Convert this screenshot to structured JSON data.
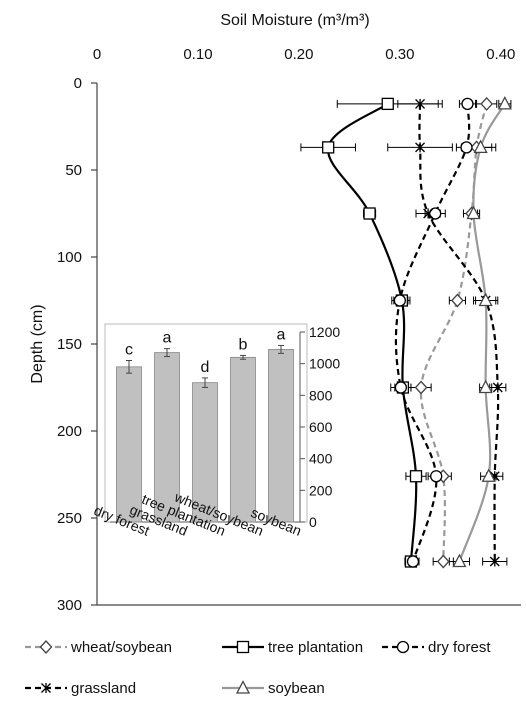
{
  "chart_data": [
    {
      "type": "line",
      "title": "",
      "xlabel": "Soil Moisture (m³/m³)",
      "ylabel": "Depth (cm)",
      "xlim": [
        0,
        0.42
      ],
      "ylim": [
        0,
        300
      ],
      "y_inverted": true,
      "x_axis_position": "top",
      "x_ticks": [
        "0",
        "0.10",
        "0.20",
        "0.30",
        "0.40"
      ],
      "y_ticks": [
        "0",
        "50",
        "100",
        "150",
        "200",
        "250",
        "300"
      ],
      "grid": false,
      "legend_position": "bottom",
      "series": [
        {
          "name": "wheat/soybean",
          "marker": "diamond",
          "line_style": "dashed",
          "color": "#999999",
          "points": [
            [
              0.386,
              12
            ],
            [
              0.376,
              37
            ],
            [
              0.371,
              75
            ],
            [
              0.357,
              125
            ],
            [
              0.321,
              175
            ],
            [
              0.343,
              226
            ],
            [
              0.343,
              275
            ]
          ],
          "err": [
            0.01,
            0.015,
            0.008,
            0.008,
            0.01,
            0.008,
            0.01
          ]
        },
        {
          "name": "tree plantation",
          "marker": "square",
          "line_style": "solid",
          "color": "#000000",
          "points": [
            [
              0.288,
              12
            ],
            [
              0.229,
              37
            ],
            [
              0.27,
              75
            ],
            [
              0.302,
              125
            ],
            [
              0.303,
              175
            ],
            [
              0.316,
              226
            ],
            [
              0.311,
              275
            ]
          ],
          "err": [
            0.05,
            0.027,
            0.006,
            0.008,
            0.008,
            0.01,
            0.006
          ]
        },
        {
          "name": "dry forest",
          "marker": "circle",
          "line_style": "dashed",
          "color": "#000000",
          "points": [
            [
              0.367,
              12
            ],
            [
              0.366,
              37
            ],
            [
              0.335,
              75
            ],
            [
              0.3,
              125
            ],
            [
              0.301,
              175
            ],
            [
              0.336,
              226
            ],
            [
              0.313,
              275
            ]
          ],
          "err": [
            0.008,
            0.01,
            0.01,
            0.008,
            0.01,
            0.008,
            0.006
          ]
        },
        {
          "name": "grassland",
          "marker": "x",
          "line_style": "dashed",
          "color": "#000000",
          "points": [
            [
              0.32,
              12
            ],
            [
              0.32,
              37
            ],
            [
              0.328,
              75
            ],
            [
              0.385,
              125
            ],
            [
              0.397,
              175
            ],
            [
              0.394,
              226
            ],
            [
              0.394,
              275
            ]
          ],
          "err": [
            0.022,
            0.032,
            0.012,
            0.01,
            0.008,
            0.008,
            0.012
          ]
        },
        {
          "name": "soybean",
          "marker": "triangle",
          "line_style": "solid",
          "color": "#999999",
          "points": [
            [
              0.404,
              12
            ],
            [
              0.38,
              37
            ],
            [
              0.373,
              75
            ],
            [
              0.385,
              125
            ],
            [
              0.385,
              175
            ],
            [
              0.388,
              226
            ],
            [
              0.359,
              275
            ]
          ],
          "err": [
            0.006,
            0.015,
            0.004,
            0.012,
            0.006,
            0.008,
            0.01
          ]
        }
      ]
    },
    {
      "type": "bar",
      "title": "",
      "categories": [
        "dry forest",
        "grassland",
        "tree plantation",
        "wheat/soybean",
        "soybean"
      ],
      "values": [
        980,
        1070,
        880,
        1040,
        1090
      ],
      "errors": [
        40,
        25,
        30,
        12,
        25
      ],
      "letters": [
        "c",
        "a",
        "d",
        "b",
        "a"
      ],
      "ylim": [
        0,
        1200
      ],
      "y_ticks": [
        "0",
        "200",
        "400",
        "600",
        "800",
        "1000",
        "1200"
      ],
      "y_axis_position": "right",
      "bar_color": "#c0c0c0"
    }
  ]
}
